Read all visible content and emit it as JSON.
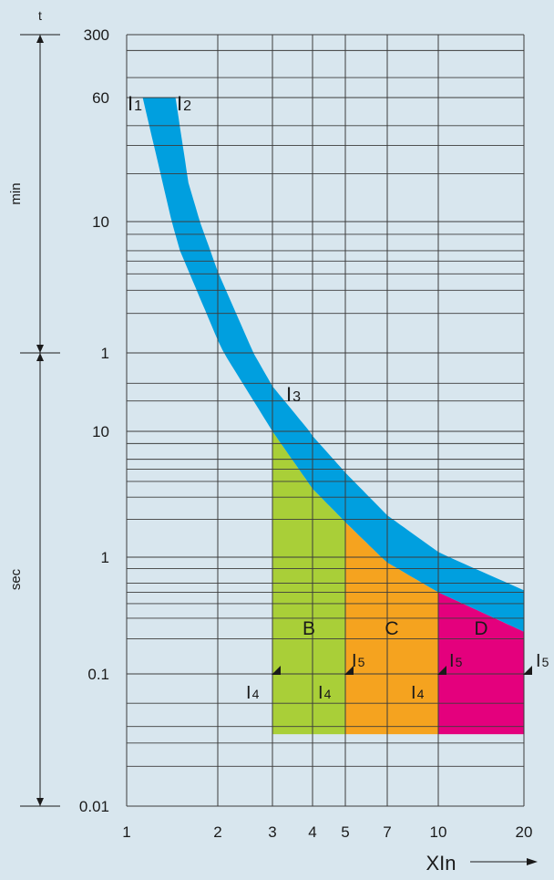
{
  "chart_data": {
    "type": "area",
    "x_scale": "log",
    "y_scale": "log",
    "xlabel": "XIn",
    "ylabel_top": "t",
    "xlim": [
      1,
      20
    ],
    "x_ticks": [
      "1",
      "2",
      "3",
      "4",
      "5",
      "7",
      "10",
      "20"
    ],
    "y_ticks": [
      {
        "label": "300",
        "seconds": 18000
      },
      {
        "label": "60",
        "seconds": 3600
      },
      {
        "label": "10",
        "seconds": 600
      },
      {
        "label": "1",
        "seconds": 60
      },
      {
        "label": "10",
        "seconds": 10
      },
      {
        "label": "1",
        "seconds": 1
      },
      {
        "label": "0.1",
        "seconds": 0.1
      },
      {
        "label": "0.01",
        "seconds": 0.01
      }
    ],
    "time_ranges": [
      {
        "label": "min",
        "from_seconds": 60,
        "to_seconds": 18000
      },
      {
        "label": "sec",
        "from_seconds": 0.01,
        "to_seconds": 60
      }
    ],
    "thermal_band": {
      "color": "#009fdf",
      "labels": [
        "I1",
        "I2",
        "I3"
      ],
      "lower_curve": [
        [
          1.13,
          3600
        ],
        [
          1.5,
          360
        ],
        [
          2,
          75
        ],
        [
          3,
          10
        ],
        [
          4,
          3.5
        ],
        [
          5,
          1.9
        ],
        [
          7,
          0.9
        ],
        [
          10,
          0.5
        ],
        [
          20,
          0.23
        ]
      ],
      "upper_curve": [
        [
          1.45,
          3600
        ],
        [
          1.6,
          1050
        ],
        [
          2,
          250
        ],
        [
          3,
          28
        ],
        [
          4,
          9.2
        ],
        [
          5,
          4.7
        ],
        [
          7,
          2.15
        ],
        [
          10,
          1.1
        ],
        [
          20,
          0.52
        ]
      ]
    },
    "zones": [
      {
        "label": "B",
        "color": "#a9cf38",
        "from_x": 3,
        "to_x": 5,
        "bottom_seconds": 0.035
      },
      {
        "label": "C",
        "color": "#f5a31f",
        "from_x": 5,
        "to_x": 10,
        "bottom_seconds": 0.035
      },
      {
        "label": "D",
        "color": "#e4007d",
        "from_x": 10,
        "to_x": 20,
        "bottom_seconds": 0.035
      }
    ],
    "instantaneous_markers": [
      {
        "label": "I4",
        "x": 3
      },
      {
        "label": "I4",
        "x": 5
      },
      {
        "label": "I5",
        "x": 5
      },
      {
        "label": "I4",
        "x": 10
      },
      {
        "label": "I5",
        "x": 10
      },
      {
        "label": "I5",
        "x": 20
      }
    ],
    "grid": true
  },
  "colors": {
    "background": "#d8e6ee",
    "grid": "#3c3c3c"
  }
}
